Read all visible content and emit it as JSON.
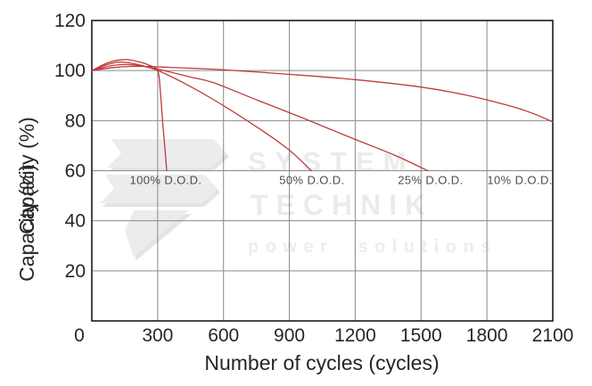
{
  "chart_data": {
    "type": "line",
    "title": "",
    "xlabel": "Number of cycles (cycles)",
    "ylabel": "Capacity (%)",
    "xlim": [
      0,
      2100
    ],
    "ylim": [
      0,
      120
    ],
    "xticks": [
      0,
      300,
      600,
      900,
      1200,
      1500,
      1800,
      2100
    ],
    "yticks": [
      20,
      40,
      60,
      80,
      100,
      120
    ],
    "grid": true,
    "legend_position": "none",
    "series": [
      {
        "name": "100% D.O.D.",
        "points": [
          [
            0,
            100
          ],
          [
            75,
            103.2
          ],
          [
            150,
            104.4
          ],
          [
            210,
            103.6
          ],
          [
            260,
            102.2
          ],
          [
            300,
            100
          ],
          [
            312,
            92
          ],
          [
            322,
            80
          ],
          [
            332,
            70
          ],
          [
            341,
            60
          ]
        ]
      },
      {
        "name": "50% D.O.D.",
        "points": [
          [
            0,
            100
          ],
          [
            70,
            102.4
          ],
          [
            130,
            103.4
          ],
          [
            200,
            102.6
          ],
          [
            260,
            101.2
          ],
          [
            310,
            99.7
          ],
          [
            420,
            95
          ],
          [
            556,
            88.3
          ],
          [
            760,
            77
          ],
          [
            900,
            68.2
          ],
          [
            1000,
            60
          ]
        ]
      },
      {
        "name": "25% D.O.D.",
        "points": [
          [
            0,
            100
          ],
          [
            80,
            101.8
          ],
          [
            150,
            102.4
          ],
          [
            230,
            101.8
          ],
          [
            330,
            100
          ],
          [
            450,
            97.4
          ],
          [
            556,
            95.1
          ],
          [
            760,
            88
          ],
          [
            963,
            81
          ],
          [
            1200,
            72.5
          ],
          [
            1380,
            66.2
          ],
          [
            1531,
            60
          ]
        ]
      },
      {
        "name": "10% D.O.D.",
        "points": [
          [
            0,
            100
          ],
          [
            100,
            101.2
          ],
          [
            200,
            101.7
          ],
          [
            350,
            101.3
          ],
          [
            600,
            100.3
          ],
          [
            900,
            98.5
          ],
          [
            1200,
            96.4
          ],
          [
            1500,
            93.4
          ],
          [
            1700,
            90.3
          ],
          [
            1900,
            86
          ],
          [
            2000,
            83.2
          ],
          [
            2100,
            79.5
          ]
        ]
      }
    ],
    "curve_labels": [
      {
        "text": "100% D.O.D.",
        "x": 337,
        "y": 56
      },
      {
        "text": "50% D.O.D.",
        "x": 1003,
        "y": 56
      },
      {
        "text": "25% D.O.D.",
        "x": 1543,
        "y": 56
      },
      {
        "text": "10% D.O.D.",
        "x": 1950,
        "y": 56
      }
    ]
  },
  "watermark": {
    "line1": "SYSTEM",
    "line2": "TECHNIK",
    "line3": "power solutions",
    "logo": "lightning-bolt"
  },
  "colors": {
    "curve": "#c03a3a",
    "grid": "#8a8a8a",
    "frame": "#1a1a1a",
    "tick_label": "#262626",
    "curve_label": "#4d4d4d",
    "watermark": "#ebebed",
    "watermark_shadow": "#e2e2e5"
  }
}
